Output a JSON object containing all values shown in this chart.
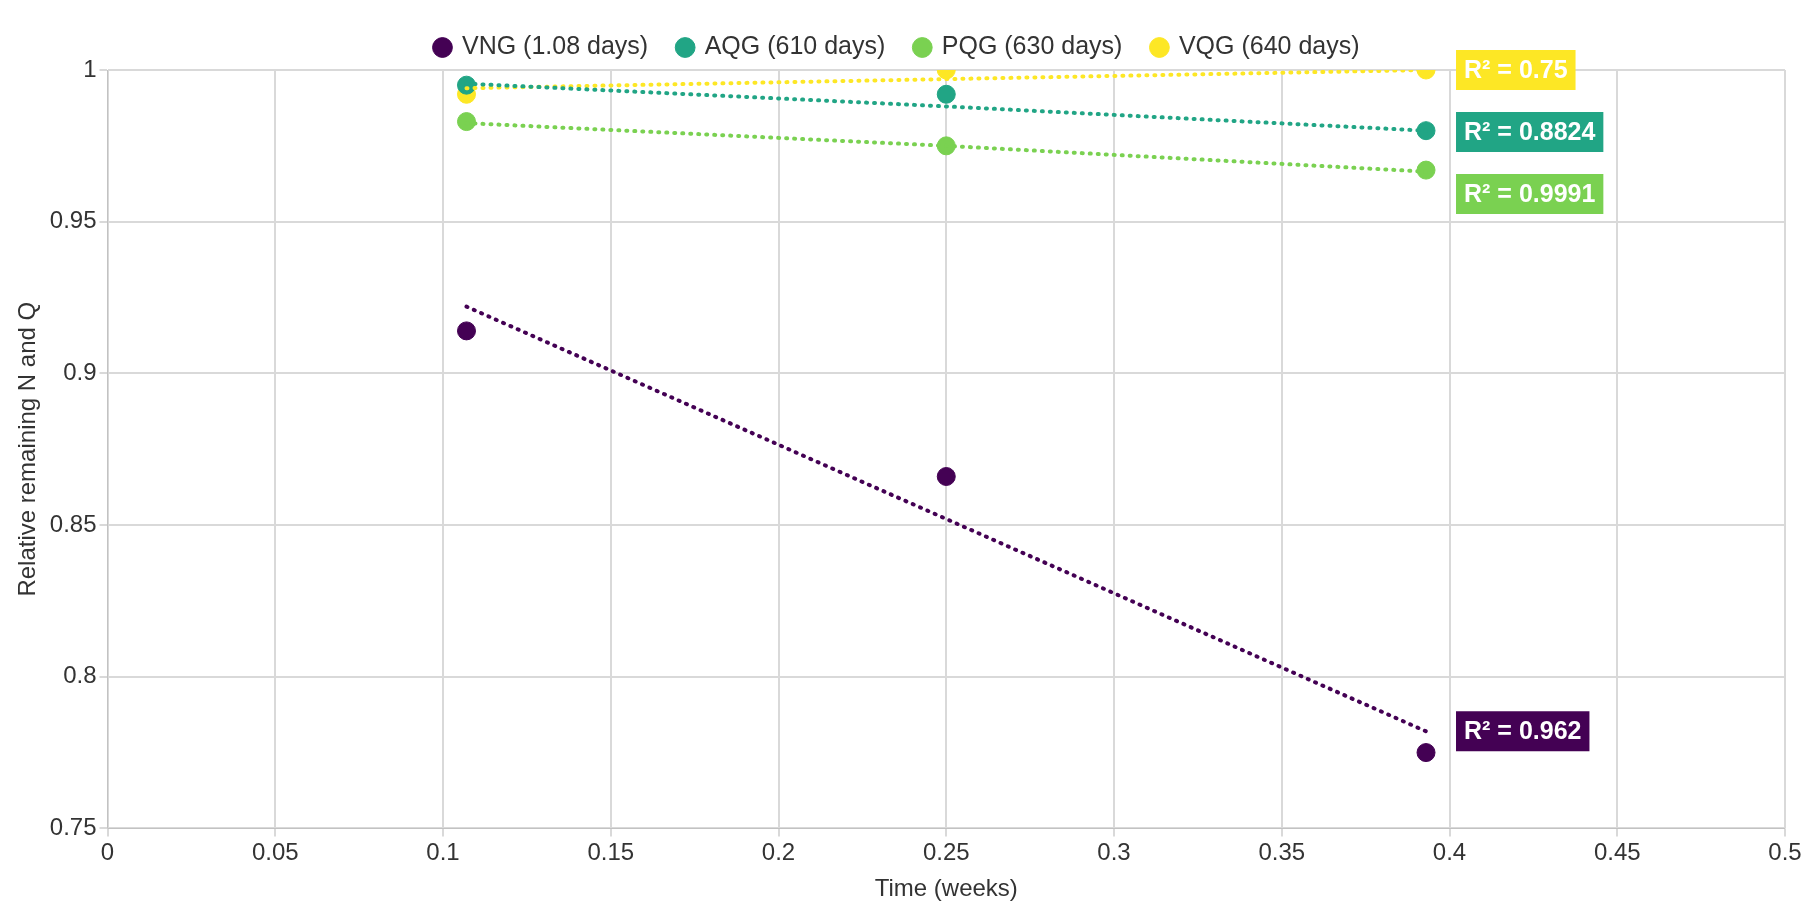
{
  "chart_data": {
    "type": "scatter",
    "xlabel": "Time (weeks)",
    "ylabel": "Relative remaining N and Q",
    "xlim": [
      0,
      0.5
    ],
    "ylim": [
      0.75,
      1
    ],
    "xticks": [
      0,
      0.05,
      0.1,
      0.15,
      0.2,
      0.25,
      0.3,
      0.35,
      0.4,
      0.45,
      0.5
    ],
    "yticks": [
      0.75,
      0.8,
      0.85,
      0.9,
      0.95,
      1
    ],
    "grid": true,
    "legend": "top",
    "x": [
      0.107,
      0.25,
      0.393
    ],
    "series": [
      {
        "name": "VNG (1.08 days)",
        "color": "#440154",
        "marker": "circle",
        "values": [
          0.914,
          0.866,
          0.775
        ]
      },
      {
        "name": "AQG (610 days)",
        "color": "#21a585",
        "marker": "circle",
        "values": [
          0.995,
          0.992,
          0.98
        ]
      },
      {
        "name": "PQG (630 days)",
        "color": "#7ad151",
        "marker": "circle",
        "values": [
          0.983,
          0.975,
          0.967
        ]
      },
      {
        "name": "VQG (640 days)",
        "color": "#fde725",
        "marker": "circle",
        "values": [
          0.992,
          1.0,
          1.0
        ]
      },
      {
        "type": "line",
        "color": "#440154",
        "line_style": "dotted",
        "values": [
          0.922,
          0.852,
          0.782
        ]
      },
      {
        "type": "line",
        "color": "#21a585",
        "line_style": "dotted",
        "values": [
          0.9955,
          0.988,
          0.98
        ]
      },
      {
        "type": "line",
        "color": "#7ad151",
        "line_style": "dotted",
        "values": [
          0.9825,
          0.975,
          0.9665
        ]
      },
      {
        "type": "line",
        "color": "#fde725",
        "line_style": "dotted",
        "values": [
          0.994,
          0.997,
          1.0
        ]
      }
    ],
    "annotations": [
      "R² = 0.962",
      "R² = 0.8824",
      "R² = 0.9991",
      "R² = 0.75"
    ]
  }
}
